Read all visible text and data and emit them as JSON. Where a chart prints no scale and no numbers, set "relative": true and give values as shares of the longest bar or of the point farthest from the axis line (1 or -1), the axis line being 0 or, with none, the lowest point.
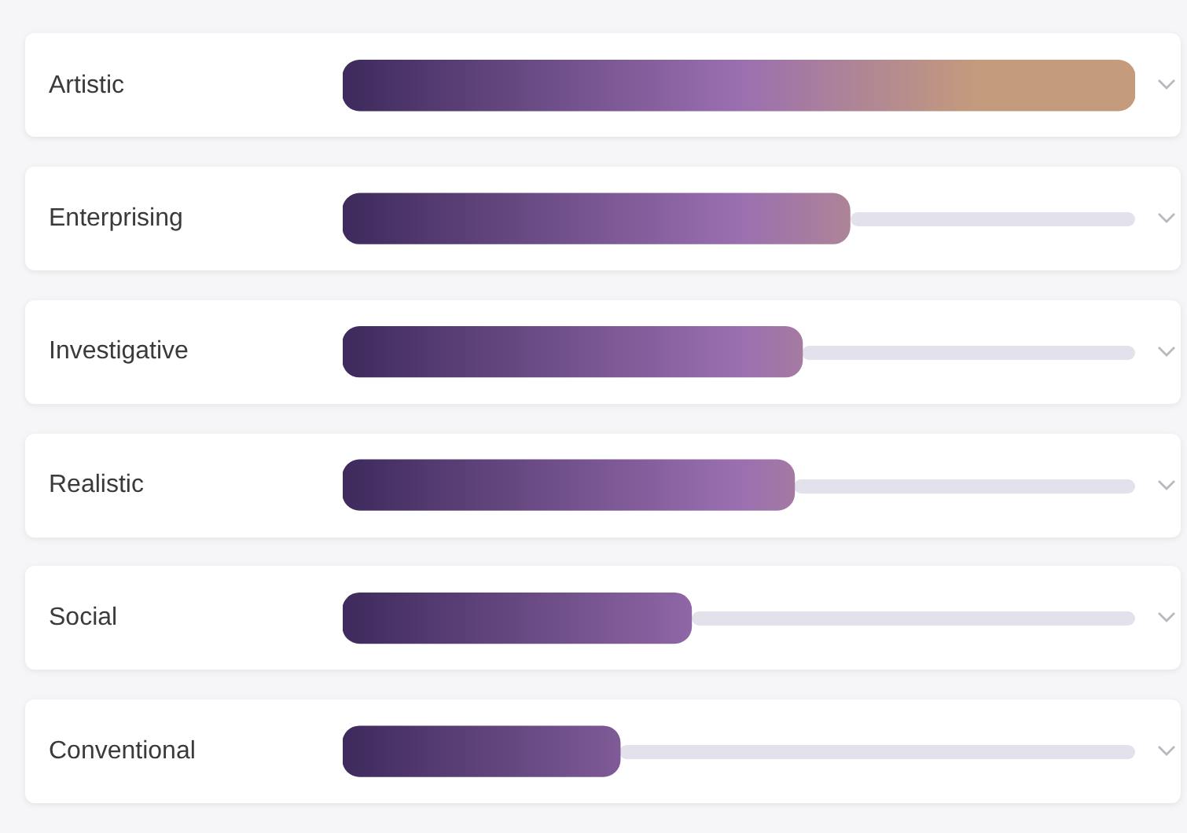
{
  "chart_data": {
    "type": "bar",
    "orientation": "horizontal",
    "relative": true,
    "categories": [
      "Artistic",
      "Enterprising",
      "Investigative",
      "Realistic",
      "Social",
      "Conventional"
    ],
    "series": [
      {
        "color": "#9a6fb0",
        "values": [
          1,
          0.64,
          0.58,
          0.57,
          0.44,
          0.35
        ]
      }
    ],
    "grid": false,
    "legend": false,
    "tick_labels": "y"
  }
}
